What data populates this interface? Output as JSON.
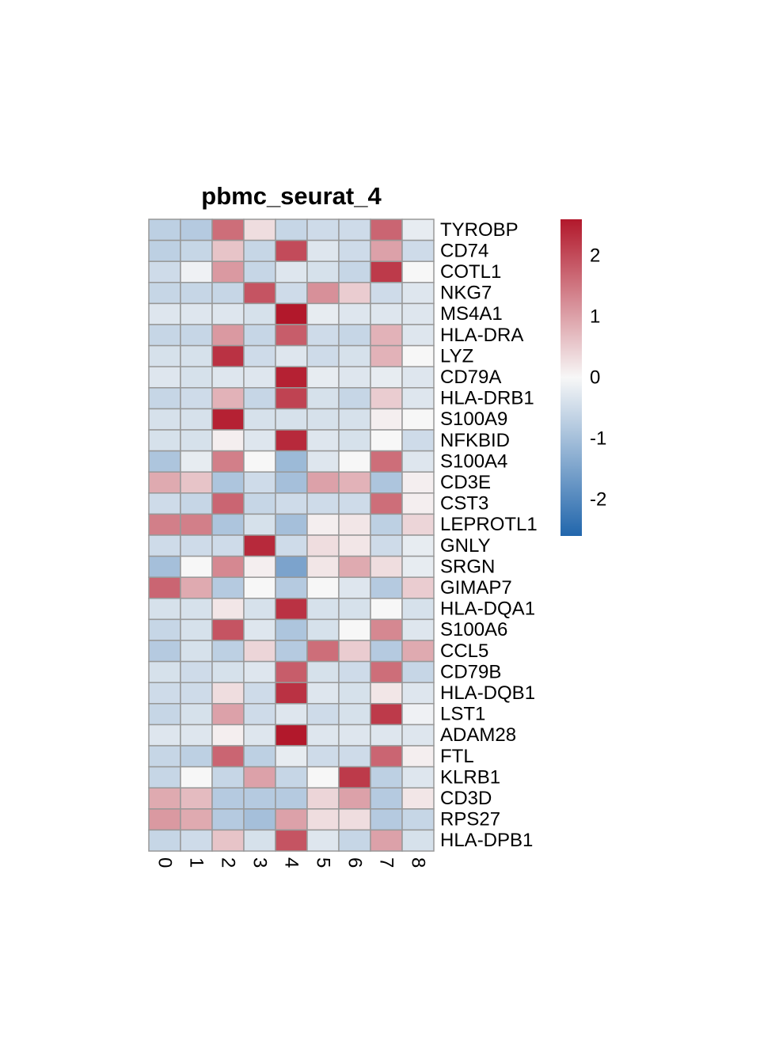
{
  "chart_data": {
    "type": "heatmap",
    "title": "pbmc_seurat_4",
    "columns": [
      "0",
      "1",
      "2",
      "3",
      "4",
      "5",
      "6",
      "7",
      "8"
    ],
    "rows": [
      "TYROBP",
      "CD74",
      "COTL1",
      "NKG7",
      "MS4A1",
      "HLA-DRA",
      "LYZ",
      "CD79A",
      "HLA-DRB1",
      "S100A9",
      "NFKBID",
      "S100A4",
      "CD3E",
      "CST3",
      "LEPROTL1",
      "GNLY",
      "SRGN",
      "GIMAP7",
      "HLA-DQA1",
      "S100A6",
      "CCL5",
      "CD79B",
      "HLA-DQB1",
      "LST1",
      "ADAM28",
      "FTL",
      "KLRB1",
      "CD3D",
      "RPS27",
      "HLA-DPB1"
    ],
    "values": [
      [
        -0.7,
        -0.8,
        1.6,
        0.3,
        -0.6,
        -0.5,
        -0.5,
        1.7,
        -0.2
      ],
      [
        -0.7,
        -0.6,
        0.6,
        -0.6,
        2.0,
        -0.3,
        -0.5,
        1.0,
        -0.5
      ],
      [
        -0.5,
        -0.1,
        1.1,
        -0.6,
        -0.3,
        -0.4,
        -0.6,
        2.2,
        0.0
      ],
      [
        -0.6,
        -0.6,
        -0.6,
        1.9,
        -0.5,
        1.2,
        0.5,
        -0.5,
        -0.3
      ],
      [
        -0.3,
        -0.3,
        -0.3,
        -0.4,
        2.6,
        -0.2,
        -0.3,
        -0.3,
        -0.3
      ],
      [
        -0.6,
        -0.6,
        1.1,
        -0.6,
        1.8,
        -0.5,
        -0.6,
        0.8,
        -0.3
      ],
      [
        -0.4,
        -0.4,
        2.3,
        -0.5,
        -0.3,
        -0.5,
        -0.4,
        0.8,
        0.0
      ],
      [
        -0.3,
        -0.4,
        -0.3,
        -0.3,
        2.5,
        -0.2,
        -0.3,
        -0.2,
        -0.3
      ],
      [
        -0.6,
        -0.5,
        0.8,
        -0.6,
        2.1,
        -0.4,
        -0.6,
        0.5,
        -0.3
      ],
      [
        -0.4,
        -0.4,
        2.5,
        -0.4,
        -0.4,
        -0.4,
        -0.4,
        0.1,
        0.0
      ],
      [
        -0.4,
        -0.4,
        0.1,
        -0.3,
        2.4,
        -0.3,
        -0.4,
        0.0,
        -0.5
      ],
      [
        -0.9,
        -0.2,
        1.4,
        0.0,
        -1.1,
        -0.3,
        0.0,
        1.6,
        -0.3
      ],
      [
        0.9,
        0.6,
        -0.9,
        -0.5,
        -1.0,
        1.0,
        0.8,
        -0.9,
        0.1
      ],
      [
        -0.5,
        -0.6,
        1.7,
        -0.6,
        -0.5,
        -0.5,
        -0.5,
        1.6,
        0.1
      ],
      [
        1.4,
        1.4,
        -0.9,
        -0.4,
        -1.0,
        0.1,
        0.2,
        -0.7,
        0.4
      ],
      [
        -0.5,
        -0.5,
        -0.5,
        2.4,
        -0.5,
        0.3,
        0.2,
        -0.5,
        -0.2
      ],
      [
        -1.0,
        0.0,
        1.3,
        0.1,
        -1.5,
        0.2,
        0.9,
        0.3,
        -0.2
      ],
      [
        1.7,
        0.9,
        -0.8,
        0.0,
        -0.8,
        0.0,
        -0.3,
        -0.8,
        0.5
      ],
      [
        -0.4,
        -0.4,
        0.2,
        -0.4,
        2.3,
        -0.4,
        -0.4,
        0.0,
        -0.4
      ],
      [
        -0.6,
        -0.4,
        1.9,
        -0.3,
        -0.9,
        -0.4,
        0.0,
        1.3,
        -0.3
      ],
      [
        -0.8,
        -0.4,
        -0.7,
        0.4,
        -0.8,
        1.6,
        0.5,
        -0.8,
        0.9
      ],
      [
        -0.4,
        -0.5,
        -0.4,
        -0.3,
        1.8,
        -0.4,
        -0.5,
        1.6,
        -0.6
      ],
      [
        -0.5,
        -0.5,
        0.3,
        -0.5,
        2.3,
        -0.3,
        -0.4,
        0.2,
        -0.3
      ],
      [
        -0.6,
        -0.4,
        1.0,
        -0.5,
        -0.3,
        -0.5,
        -0.4,
        2.2,
        -0.1
      ],
      [
        -0.3,
        -0.3,
        0.1,
        -0.3,
        2.6,
        -0.3,
        -0.3,
        -0.3,
        -0.3
      ],
      [
        -0.6,
        -0.7,
        1.7,
        -0.7,
        -0.2,
        -0.5,
        -0.5,
        1.7,
        0.1
      ],
      [
        -0.6,
        0.0,
        -0.6,
        1.0,
        -0.6,
        0.0,
        2.2,
        -0.7,
        -0.3
      ],
      [
        0.9,
        0.7,
        -0.8,
        -0.8,
        -0.8,
        0.4,
        1.0,
        -0.8,
        0.2
      ],
      [
        1.1,
        0.9,
        -0.8,
        -1.0,
        1.0,
        0.3,
        0.3,
        -0.8,
        -0.6
      ],
      [
        -0.6,
        -0.5,
        0.6,
        -0.4,
        1.9,
        -0.3,
        -0.6,
        1.0,
        -0.4
      ]
    ],
    "color_scale": {
      "low": "#2166ac",
      "mid": "#f7f7f7",
      "high": "#b2182b",
      "min": -2.6,
      "max": 2.6
    },
    "legend_ticks": [
      2,
      1,
      0,
      -1,
      -2
    ],
    "legend_tick_labels": [
      "2",
      "1",
      "0",
      "-1",
      "-2"
    ],
    "legend_position": "right",
    "grid": false
  }
}
